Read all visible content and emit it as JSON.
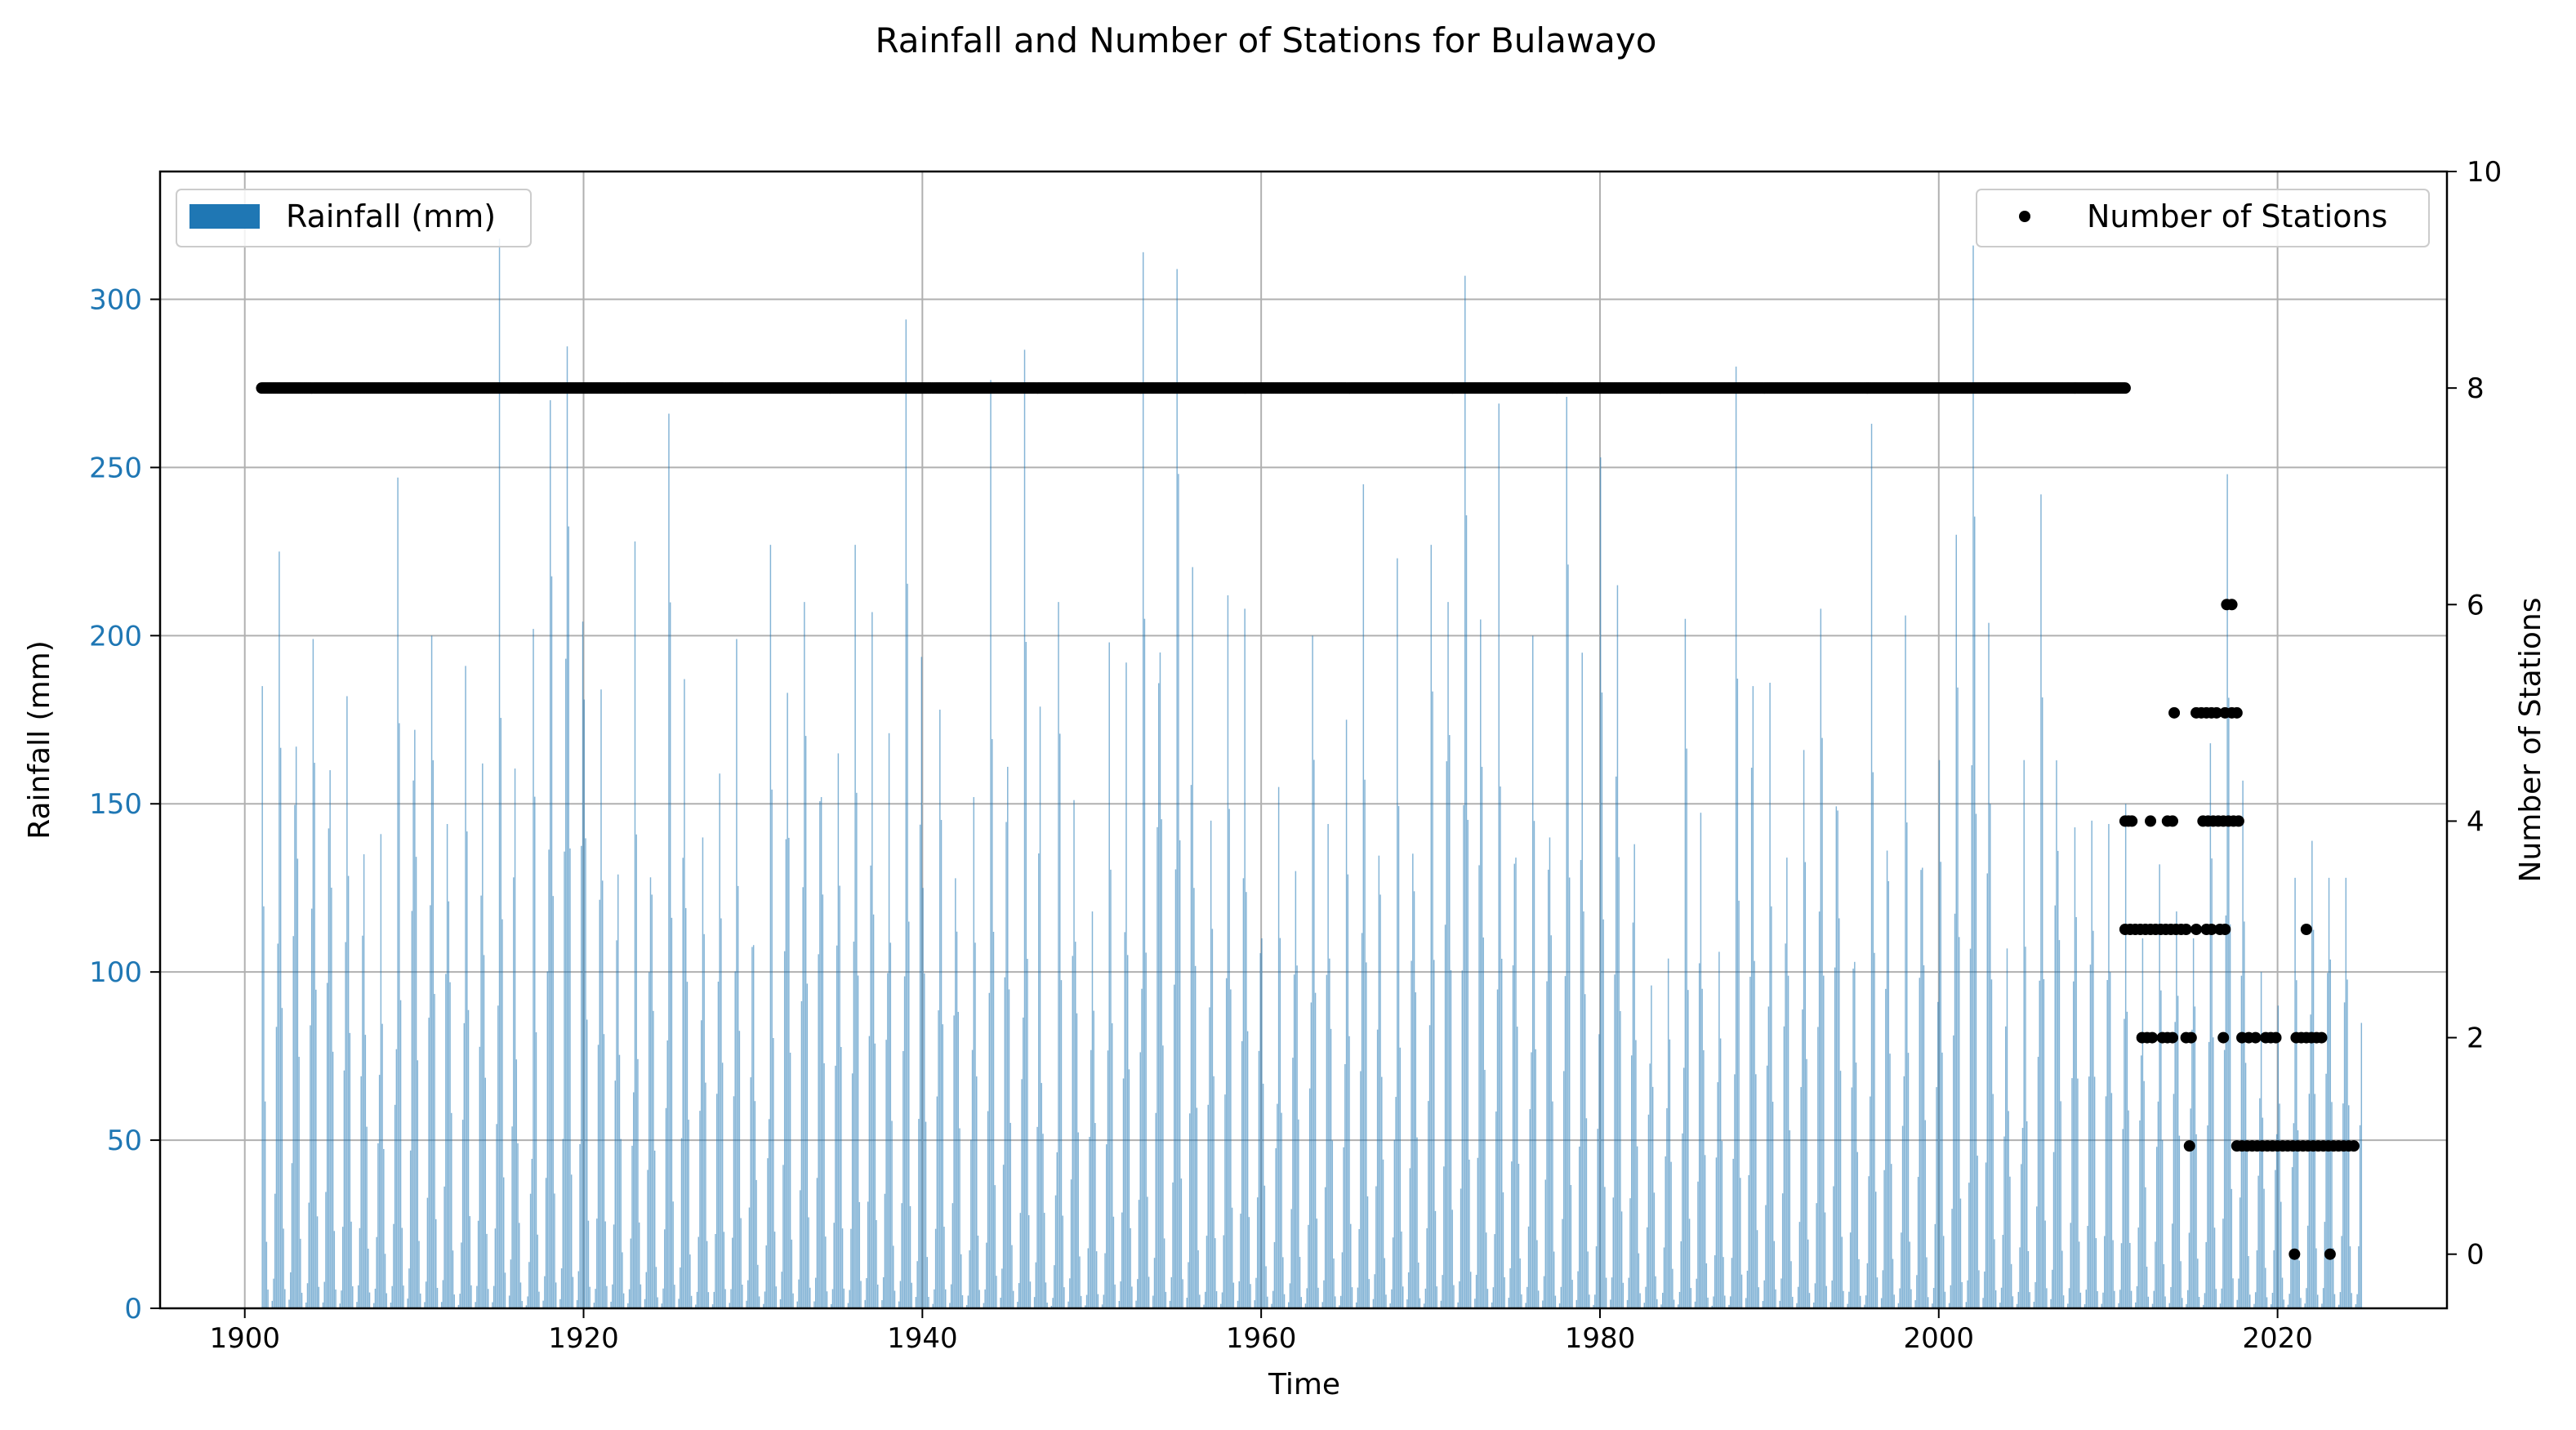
{
  "chart_data": {
    "type": "bar",
    "title": "Rainfall and Number of Stations for Bulawayo",
    "xlabel": "Time",
    "ylabel": "Rainfall (mm)",
    "y2label": "Number of Stations",
    "xlim": [
      1895,
      2030
    ],
    "ylim": [
      0,
      338
    ],
    "y2lim": [
      -0.5,
      10
    ],
    "grid": true,
    "xticks": [
      1900,
      1920,
      1940,
      1960,
      1980,
      2000,
      2020
    ],
    "yticks": [
      0,
      50,
      100,
      150,
      200,
      250,
      300
    ],
    "y2ticks": [
      0,
      2,
      4,
      6,
      8,
      10
    ],
    "colors": {
      "rainfall": "#1f77b4",
      "stations": "#000000",
      "grid": "#b0b0b0"
    },
    "legend": [
      {
        "label": "Rainfall (mm)",
        "placement": "upper-left",
        "marker": "bar"
      },
      {
        "label": "Number of Stations",
        "placement": "upper-right",
        "marker": "dot"
      }
    ],
    "series": [
      {
        "name": "Rainfall (mm)",
        "kind": "monthly-bars",
        "x_start": 1901,
        "x_end": 2024,
        "annual_peaks": [
          {
            "year": 1901,
            "value": 185
          },
          {
            "year": 1902,
            "value": 225
          },
          {
            "year": 1903,
            "value": 167
          },
          {
            "year": 1904,
            "value": 199
          },
          {
            "year": 1905,
            "value": 160
          },
          {
            "year": 1906,
            "value": 182
          },
          {
            "year": 1907,
            "value": 135
          },
          {
            "year": 1908,
            "value": 141
          },
          {
            "year": 1909,
            "value": 247
          },
          {
            "year": 1910,
            "value": 172
          },
          {
            "year": 1911,
            "value": 200
          },
          {
            "year": 1912,
            "value": 121
          },
          {
            "year": 1913,
            "value": 191
          },
          {
            "year": 1914,
            "value": 162
          },
          {
            "year": 1915,
            "value": 318
          },
          {
            "year": 1916,
            "value": 74
          },
          {
            "year": 1917,
            "value": 202
          },
          {
            "year": 1918,
            "value": 270
          },
          {
            "year": 1919,
            "value": 286
          },
          {
            "year": 1920,
            "value": 181
          },
          {
            "year": 1921,
            "value": 184
          },
          {
            "year": 1922,
            "value": 129
          },
          {
            "year": 1923,
            "value": 228
          },
          {
            "year": 1924,
            "value": 123
          },
          {
            "year": 1925,
            "value": 266
          },
          {
            "year": 1926,
            "value": 119
          },
          {
            "year": 1927,
            "value": 140
          },
          {
            "year": 1928,
            "value": 159
          },
          {
            "year": 1929,
            "value": 199
          },
          {
            "year": 1930,
            "value": 108
          },
          {
            "year": 1931,
            "value": 227
          },
          {
            "year": 1932,
            "value": 183
          },
          {
            "year": 1933,
            "value": 210
          },
          {
            "year": 1934,
            "value": 152
          },
          {
            "year": 1935,
            "value": 165
          },
          {
            "year": 1936,
            "value": 227
          },
          {
            "year": 1937,
            "value": 207
          },
          {
            "year": 1938,
            "value": 171
          },
          {
            "year": 1939,
            "value": 294
          },
          {
            "year": 1940,
            "value": 125
          },
          {
            "year": 1941,
            "value": 178
          },
          {
            "year": 1942,
            "value": 112
          },
          {
            "year": 1943,
            "value": 152
          },
          {
            "year": 1944,
            "value": 276
          },
          {
            "year": 1945,
            "value": 161
          },
          {
            "year": 1946,
            "value": 285
          },
          {
            "year": 1947,
            "value": 67
          },
          {
            "year": 1948,
            "value": 210
          },
          {
            "year": 1949,
            "value": 109
          },
          {
            "year": 1950,
            "value": 118
          },
          {
            "year": 1951,
            "value": 198
          },
          {
            "year": 1952,
            "value": 192
          },
          {
            "year": 1953,
            "value": 314
          },
          {
            "year": 1954,
            "value": 195
          },
          {
            "year": 1955,
            "value": 309
          },
          {
            "year": 1956,
            "value": 125
          },
          {
            "year": 1957,
            "value": 145
          },
          {
            "year": 1958,
            "value": 212
          },
          {
            "year": 1959,
            "value": 208
          },
          {
            "year": 1960,
            "value": 110
          },
          {
            "year": 1961,
            "value": 155
          },
          {
            "year": 1962,
            "value": 130
          },
          {
            "year": 1963,
            "value": 200
          },
          {
            "year": 1964,
            "value": 104
          },
          {
            "year": 1965,
            "value": 175
          },
          {
            "year": 1966,
            "value": 245
          },
          {
            "year": 1967,
            "value": 123
          },
          {
            "year": 1968,
            "value": 223
          },
          {
            "year": 1969,
            "value": 124
          },
          {
            "year": 1970,
            "value": 227
          },
          {
            "year": 1971,
            "value": 210
          },
          {
            "year": 1972,
            "value": 307
          },
          {
            "year": 1973,
            "value": 161
          },
          {
            "year": 1974,
            "value": 269
          },
          {
            "year": 1975,
            "value": 134
          },
          {
            "year": 1976,
            "value": 200
          },
          {
            "year": 1977,
            "value": 140
          },
          {
            "year": 1978,
            "value": 271
          },
          {
            "year": 1979,
            "value": 118
          },
          {
            "year": 1980,
            "value": 253
          },
          {
            "year": 1981,
            "value": 215
          },
          {
            "year": 1982,
            "value": 138
          },
          {
            "year": 1983,
            "value": 96
          },
          {
            "year": 1984,
            "value": 104
          },
          {
            "year": 1985,
            "value": 205
          },
          {
            "year": 1986,
            "value": 95
          },
          {
            "year": 1987,
            "value": 106
          },
          {
            "year": 1988,
            "value": 280
          },
          {
            "year": 1989,
            "value": 185
          },
          {
            "year": 1990,
            "value": 186
          },
          {
            "year": 1991,
            "value": 134
          },
          {
            "year": 1992,
            "value": 166
          },
          {
            "year": 1993,
            "value": 208
          },
          {
            "year": 1994,
            "value": 148
          },
          {
            "year": 1995,
            "value": 103
          },
          {
            "year": 1996,
            "value": 263
          },
          {
            "year": 1997,
            "value": 127
          },
          {
            "year": 1998,
            "value": 206
          },
          {
            "year": 1999,
            "value": 131
          },
          {
            "year": 2000,
            "value": 163
          },
          {
            "year": 2001,
            "value": 230
          },
          {
            "year": 2002,
            "value": 316
          },
          {
            "year": 2003,
            "value": 150
          },
          {
            "year": 2004,
            "value": 107
          },
          {
            "year": 2005,
            "value": 163
          },
          {
            "year": 2006,
            "value": 242
          },
          {
            "year": 2007,
            "value": 136
          },
          {
            "year": 2008,
            "value": 143
          },
          {
            "year": 2009,
            "value": 145
          },
          {
            "year": 2010,
            "value": 144
          },
          {
            "year": 2011,
            "value": 150
          },
          {
            "year": 2012,
            "value": 110
          },
          {
            "year": 2013,
            "value": 132
          },
          {
            "year": 2014,
            "value": 118
          },
          {
            "year": 2015,
            "value": 110
          },
          {
            "year": 2016,
            "value": 168
          },
          {
            "year": 2017,
            "value": 248
          },
          {
            "year": 2018,
            "value": 115
          },
          {
            "year": 2019,
            "value": 100
          },
          {
            "year": 2020,
            "value": 90
          },
          {
            "year": 2021,
            "value": 128
          },
          {
            "year": 2022,
            "value": 139
          },
          {
            "year": 2023,
            "value": 128
          },
          {
            "year": 2024,
            "value": 128
          }
        ]
      },
      {
        "name": "Number of Stations",
        "kind": "scatter",
        "axis": "right",
        "segments": [
          {
            "from": 1901.0,
            "to": 2011.0,
            "value": 8
          }
        ],
        "points": [
          {
            "x": 2011.0,
            "y": 4
          },
          {
            "x": 2011.2,
            "y": 4
          },
          {
            "x": 2011.4,
            "y": 4
          },
          {
            "x": 2011.0,
            "y": 3
          },
          {
            "x": 2011.3,
            "y": 3
          },
          {
            "x": 2011.6,
            "y": 3
          },
          {
            "x": 2011.9,
            "y": 3
          },
          {
            "x": 2012.2,
            "y": 3
          },
          {
            "x": 2012.5,
            "y": 3
          },
          {
            "x": 2012.8,
            "y": 3
          },
          {
            "x": 2013.1,
            "y": 3
          },
          {
            "x": 2013.4,
            "y": 3
          },
          {
            "x": 2013.7,
            "y": 3
          },
          {
            "x": 2014.0,
            "y": 3
          },
          {
            "x": 2014.3,
            "y": 3
          },
          {
            "x": 2014.6,
            "y": 3
          },
          {
            "x": 2015.2,
            "y": 3
          },
          {
            "x": 2015.8,
            "y": 3
          },
          {
            "x": 2016.1,
            "y": 3
          },
          {
            "x": 2016.6,
            "y": 3
          },
          {
            "x": 2016.9,
            "y": 3
          },
          {
            "x": 2012.0,
            "y": 2
          },
          {
            "x": 2012.3,
            "y": 2
          },
          {
            "x": 2012.6,
            "y": 2
          },
          {
            "x": 2013.2,
            "y": 2
          },
          {
            "x": 2013.5,
            "y": 2
          },
          {
            "x": 2013.8,
            "y": 2
          },
          {
            "x": 2014.6,
            "y": 2
          },
          {
            "x": 2014.9,
            "y": 2
          },
          {
            "x": 2016.8,
            "y": 2
          },
          {
            "x": 2017.9,
            "y": 2
          },
          {
            "x": 2018.3,
            "y": 2
          },
          {
            "x": 2018.7,
            "y": 2
          },
          {
            "x": 2019.3,
            "y": 2
          },
          {
            "x": 2019.6,
            "y": 2
          },
          {
            "x": 2019.9,
            "y": 2
          },
          {
            "x": 2021.1,
            "y": 2
          },
          {
            "x": 2021.4,
            "y": 2
          },
          {
            "x": 2021.7,
            "y": 2
          },
          {
            "x": 2022.0,
            "y": 2
          },
          {
            "x": 2022.3,
            "y": 2
          },
          {
            "x": 2022.6,
            "y": 2
          },
          {
            "x": 2012.5,
            "y": 4
          },
          {
            "x": 2013.5,
            "y": 4
          },
          {
            "x": 2013.8,
            "y": 4
          },
          {
            "x": 2015.6,
            "y": 4
          },
          {
            "x": 2015.9,
            "y": 4
          },
          {
            "x": 2016.2,
            "y": 4
          },
          {
            "x": 2016.5,
            "y": 4
          },
          {
            "x": 2016.8,
            "y": 4
          },
          {
            "x": 2017.1,
            "y": 4
          },
          {
            "x": 2017.4,
            "y": 4
          },
          {
            "x": 2017.7,
            "y": 4
          },
          {
            "x": 2013.9,
            "y": 5
          },
          {
            "x": 2015.2,
            "y": 5
          },
          {
            "x": 2015.5,
            "y": 5
          },
          {
            "x": 2015.8,
            "y": 5
          },
          {
            "x": 2016.1,
            "y": 5
          },
          {
            "x": 2016.4,
            "y": 5
          },
          {
            "x": 2016.9,
            "y": 5
          },
          {
            "x": 2017.3,
            "y": 5
          },
          {
            "x": 2017.6,
            "y": 5
          },
          {
            "x": 2017.0,
            "y": 6
          },
          {
            "x": 2017.3,
            "y": 6
          },
          {
            "x": 2014.8,
            "y": 1
          },
          {
            "x": 2017.6,
            "y": 1
          },
          {
            "x": 2017.9,
            "y": 1
          },
          {
            "x": 2018.2,
            "y": 1
          },
          {
            "x": 2018.5,
            "y": 1
          },
          {
            "x": 2018.8,
            "y": 1
          },
          {
            "x": 2019.1,
            "y": 1
          },
          {
            "x": 2019.4,
            "y": 1
          },
          {
            "x": 2019.7,
            "y": 1
          },
          {
            "x": 2020.0,
            "y": 1
          },
          {
            "x": 2020.3,
            "y": 1
          },
          {
            "x": 2020.6,
            "y": 1
          },
          {
            "x": 2020.9,
            "y": 1
          },
          {
            "x": 2021.2,
            "y": 1
          },
          {
            "x": 2021.5,
            "y": 1
          },
          {
            "x": 2021.8,
            "y": 1
          },
          {
            "x": 2022.1,
            "y": 1
          },
          {
            "x": 2022.4,
            "y": 1
          },
          {
            "x": 2022.7,
            "y": 1
          },
          {
            "x": 2023.0,
            "y": 1
          },
          {
            "x": 2023.3,
            "y": 1
          },
          {
            "x": 2023.6,
            "y": 1
          },
          {
            "x": 2023.9,
            "y": 1
          },
          {
            "x": 2024.2,
            "y": 1
          },
          {
            "x": 2024.5,
            "y": 1
          },
          {
            "x": 2021.0,
            "y": 0
          },
          {
            "x": 2023.1,
            "y": 0
          },
          {
            "x": 2021.7,
            "y": 3
          }
        ]
      }
    ]
  }
}
